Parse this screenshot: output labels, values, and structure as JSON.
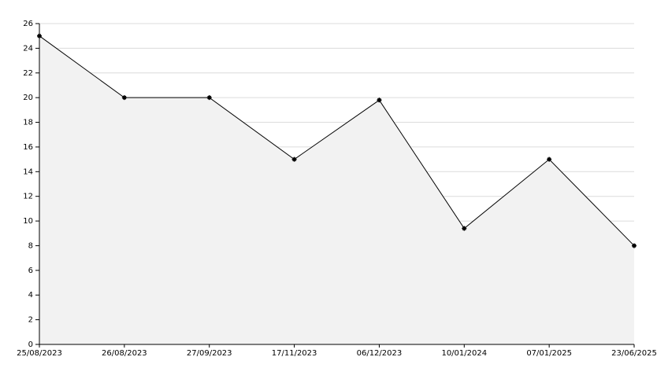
{
  "chart_data": {
    "type": "area",
    "categories": [
      "25/08/2023",
      "26/08/2023",
      "27/09/2023",
      "17/11/2023",
      "06/12/2023",
      "10/01/2024",
      "07/01/2025",
      "23/06/2025"
    ],
    "values": [
      25,
      20,
      20,
      15,
      19.8,
      9.4,
      15,
      8
    ],
    "color": "#000000",
    "fill": "#f2f2f2",
    "ylim": [
      0,
      26
    ],
    "yticks": [
      0,
      2,
      4,
      6,
      8,
      10,
      12,
      14,
      16,
      18,
      20,
      22,
      24,
      26
    ],
    "grid": true
  }
}
